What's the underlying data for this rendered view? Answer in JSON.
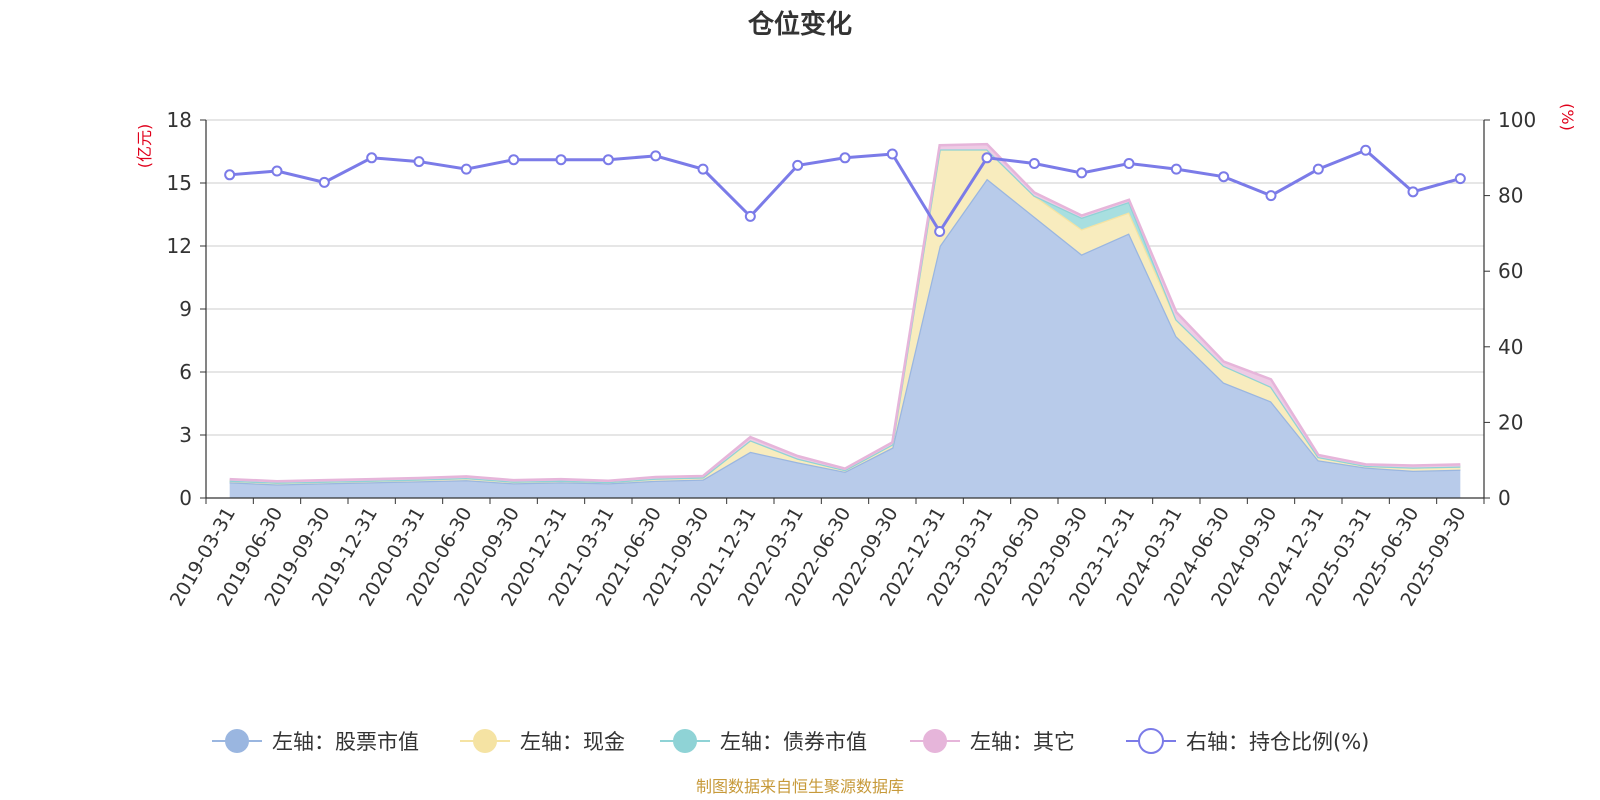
{
  "chart_data": {
    "type": "area",
    "title": "仓位变化",
    "source": "制图数据来自恒生聚源数据库",
    "left_axis": {
      "unit": "(亿元)",
      "ylim": [
        0,
        18
      ],
      "ticks": [
        "0",
        "3",
        "6",
        "9",
        "12",
        "15",
        "18"
      ]
    },
    "right_axis": {
      "unit": "(%)",
      "ylim": [
        0,
        100
      ],
      "ticks": [
        "0",
        "20",
        "40",
        "60",
        "80",
        "100"
      ]
    },
    "grid": true,
    "legend_position": "bottom-center",
    "categories": [
      "2019-03-31",
      "2019-06-30",
      "2019-09-30",
      "2019-12-31",
      "2020-03-31",
      "2020-06-30",
      "2020-09-30",
      "2020-12-31",
      "2021-03-31",
      "2021-06-30",
      "2021-09-30",
      "2021-12-31",
      "2022-03-31",
      "2022-06-30",
      "2022-09-30",
      "2022-12-31",
      "2023-03-31",
      "2023-06-30",
      "2023-09-30",
      "2023-12-31",
      "2024-03-31",
      "2024-06-30",
      "2024-09-30",
      "2024-12-31",
      "2025-03-31",
      "2025-06-30",
      "2025-09-30"
    ],
    "series": [
      {
        "name": "左轴：股票市值",
        "axis": "left",
        "kind": "area",
        "color": "#9ab6e0",
        "fill": "#b8cbea",
        "values": [
          0.75,
          0.65,
          0.7,
          0.75,
          0.8,
          0.85,
          0.7,
          0.75,
          0.7,
          0.82,
          0.88,
          2.2,
          1.7,
          1.25,
          2.4,
          12.0,
          15.2,
          13.4,
          11.6,
          12.6,
          7.7,
          5.5,
          4.6,
          1.8,
          1.45,
          1.3,
          1.35
        ]
      },
      {
        "name": "左轴：现金",
        "axis": "left",
        "kind": "area",
        "color": "#f5e3a3",
        "fill": "#f8ecbe",
        "values": [
          0.08,
          0.08,
          0.08,
          0.08,
          0.08,
          0.1,
          0.08,
          0.08,
          0.06,
          0.1,
          0.1,
          0.55,
          0.18,
          0.08,
          0.15,
          4.6,
          1.4,
          1.0,
          1.2,
          1.0,
          0.8,
          0.8,
          0.7,
          0.15,
          0.08,
          0.15,
          0.15
        ]
      },
      {
        "name": "左轴：债券市值",
        "axis": "left",
        "kind": "area",
        "color": "#8fd3d6",
        "fill": "#a8dfe0",
        "values": [
          0,
          0,
          0,
          0,
          0,
          0,
          0,
          0,
          0,
          0,
          0,
          0,
          0,
          0,
          0,
          0,
          0,
          0,
          0.55,
          0.5,
          0,
          0,
          0,
          0,
          0,
          0,
          0
        ]
      },
      {
        "name": "左轴：其它",
        "axis": "left",
        "kind": "area",
        "color": "#e6b5da",
        "fill": "#eecbe5",
        "values": [
          0.07,
          0.07,
          0.07,
          0.07,
          0.07,
          0.08,
          0.07,
          0.07,
          0.06,
          0.08,
          0.07,
          0.15,
          0.12,
          0.07,
          0.1,
          0.2,
          0.25,
          0.15,
          0.1,
          0.1,
          0.35,
          0.2,
          0.35,
          0.1,
          0.07,
          0.1,
          0.1
        ]
      },
      {
        "name": "右轴：持仓比例(%)",
        "axis": "right",
        "kind": "line",
        "color": "#7b7be8",
        "values": [
          85.5,
          86.5,
          83.5,
          90,
          89,
          87,
          89.5,
          89.5,
          89.5,
          90.5,
          87,
          74.5,
          88,
          90,
          91,
          70.5,
          90,
          88.5,
          86,
          88.5,
          87,
          85,
          80,
          87,
          92,
          81,
          84.5
        ]
      }
    ]
  }
}
